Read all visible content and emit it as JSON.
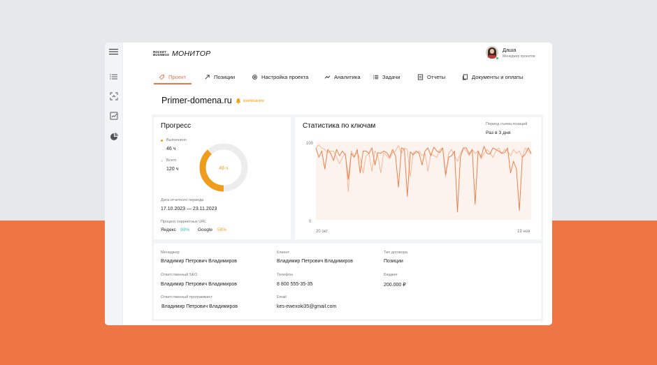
{
  "colors": {
    "accent": "#ee7644",
    "donut_done": "#ee9d1d",
    "donut_rest": "#ededed",
    "line_dark": "#e8804c",
    "line_light": "#f2b48f",
    "yandex_pct": "#2dc3a8",
    "google_pct": "#f0a020",
    "attention": "#f4a11b"
  },
  "app": {
    "logo_mark": "ROCKET BUSINESS",
    "logo_text": "МОНИТОР",
    "menu_icon": "hamburger-icon"
  },
  "user": {
    "name": "Даша",
    "role": "Менеджер проектов"
  },
  "sidebar": {
    "icons": [
      "list-icon",
      "scan-icon",
      "edit-chart-icon",
      "pie-icon"
    ]
  },
  "tabs": [
    {
      "label": "Проект",
      "icon": "tag-icon",
      "active": true
    },
    {
      "label": "Позиции",
      "icon": "arrow-up-right-icon",
      "active": false
    },
    {
      "label": "Настройка проекта",
      "icon": "gear-icon",
      "active": false
    },
    {
      "label": "Аналитика",
      "icon": "trend-icon",
      "active": false
    },
    {
      "label": "Задачи",
      "icon": "tasks-icon",
      "active": false
    },
    {
      "label": "Отчеты",
      "icon": "report-icon",
      "active": false
    },
    {
      "label": "Документы и оплаты",
      "icon": "documents-icon",
      "active": false
    }
  ],
  "project": {
    "domain": "Primer-domena.ru",
    "attention": "внимание"
  },
  "progress": {
    "title": "Прогресс",
    "done_label": "Выполнено",
    "done_value": "46 ч",
    "total_label": "Всего",
    "total_value": "120 ч",
    "donut_center": "46 ч",
    "donut_fraction": 0.383,
    "period_label": "Дата отчетного периода",
    "period_value": "17.10.2023 — 23.11.2023",
    "url_label": "Процент корректных URL",
    "yandex_label": "Яндекс",
    "yandex_pct": "90%",
    "google_label": "Google",
    "google_pct": "58%"
  },
  "stats": {
    "title": "Статистика по ключам",
    "period_label": "Период съема позиций",
    "period_value": "Раз в 3 дня"
  },
  "chart_data": {
    "type": "line",
    "title": "Статистика по ключам",
    "xlabel": "",
    "ylabel": "",
    "ylim": [
      0,
      100
    ],
    "y_ticks": [
      "100",
      "0"
    ],
    "x_ticks": [
      "20 окт",
      "19 ноя"
    ],
    "grid": false,
    "series": [
      {
        "values": [
          92,
          80,
          88,
          65,
          90,
          85,
          76,
          90,
          82,
          88,
          83,
          52,
          85,
          80,
          90,
          60,
          88,
          88,
          85,
          92,
          70,
          86,
          85,
          88,
          86,
          80,
          90,
          82,
          42,
          92,
          90,
          30,
          87,
          83,
          88,
          85,
          70,
          88,
          92,
          82,
          93,
          88,
          86,
          92,
          58,
          80,
          82,
          88,
          10,
          80,
          92,
          92,
          84,
          90,
          20,
          88,
          80,
          94,
          85,
          84,
          92,
          90,
          88,
          85,
          86,
          92,
          60,
          75,
          65,
          12,
          80,
          84,
          92,
          85
        ]
      },
      {
        "values": [
          92,
          96,
          92,
          90,
          86,
          88,
          88,
          80,
          72,
          80,
          85,
          36,
          88,
          82,
          86,
          78,
          60,
          82,
          85,
          62,
          88,
          82,
          60,
          86,
          82,
          78,
          86,
          88,
          95,
          85,
          92,
          90,
          55,
          86,
          85,
          88,
          82,
          85,
          62,
          85,
          82,
          80,
          90,
          92,
          55,
          85,
          90,
          82,
          75,
          85,
          92,
          88,
          82,
          90,
          85,
          88,
          78,
          85,
          90,
          86,
          80,
          88,
          92,
          85,
          90,
          88,
          82,
          90,
          85,
          88,
          80,
          92,
          88,
          84
        ]
      }
    ]
  },
  "details": {
    "manager_label": "Менеджер",
    "manager_value": "Владимир Петрович Владимиров",
    "seo_label": "Ответственный  SEO",
    "seo_value": "Владимир Петрович Владимиров",
    "dev_label": "Ответственный программист",
    "dev_value": "Владимир Петрович Владимиров",
    "client_label": "Клиент",
    "client_value": "Владимир Петрович Владимиров",
    "phone_label": "Телефон",
    "phone_value": "8 800 555-35-35",
    "email_label": "Email",
    "email_value": "kes-ewexoki35@gmail.com",
    "contract_label": "Тип договора",
    "contract_value": "Позиции",
    "budget_label": "Бюджет",
    "budget_value": "200.000 ₽"
  }
}
